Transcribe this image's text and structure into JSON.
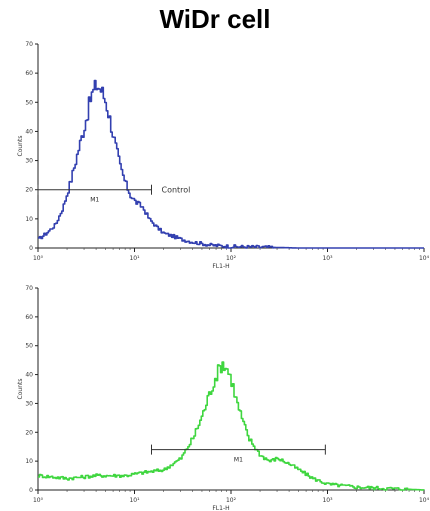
{
  "title": "WiDr cell",
  "chart_data": [
    {
      "type": "histogram",
      "color": "#3340b0",
      "xscale": "log",
      "xlim": [
        1,
        10000
      ],
      "ylim": [
        0,
        70
      ],
      "xlabel": "FL1-H",
      "ylabel": "Counts",
      "xticks": [
        1,
        10,
        100,
        1000,
        10000
      ],
      "xtick_labels": [
        "10⁰",
        "10¹",
        "10²",
        "10³",
        "10⁴"
      ],
      "yticks": [
        0,
        10,
        20,
        30,
        40,
        50,
        60,
        70
      ],
      "ytick_labels": [
        "0",
        "10",
        "20",
        "30",
        "40",
        "50",
        "60",
        "70"
      ],
      "gate": {
        "label": "M1",
        "x_start": 1,
        "x_end": 15,
        "y": 20
      },
      "annotation": "Control",
      "x": [
        1,
        1.2,
        1.5,
        1.8,
        2.2,
        2.6,
        3,
        3.5,
        4,
        4.5,
        5,
        5.5,
        6,
        7,
        8,
        9,
        10,
        12,
        14,
        17,
        20,
        25,
        30,
        40,
        60,
        100,
        200,
        500,
        1000,
        10000
      ],
      "values": [
        3,
        5,
        8,
        14,
        24,
        34,
        42,
        52,
        56,
        54,
        50,
        44,
        38,
        28,
        22,
        18,
        16,
        14,
        10,
        7,
        5,
        4,
        3,
        2,
        1,
        0.5,
        0.3,
        0,
        0,
        0
      ]
    },
    {
      "type": "histogram",
      "color": "#3fd63f",
      "xscale": "log",
      "xlim": [
        1,
        10000
      ],
      "ylim": [
        0,
        70
      ],
      "xlabel": "FL1-H",
      "ylabel": "Counts",
      "xticks": [
        1,
        10,
        100,
        1000,
        10000
      ],
      "xtick_labels": [
        "10⁰",
        "10¹",
        "10²",
        "10³",
        "10⁴"
      ],
      "yticks": [
        0,
        10,
        20,
        30,
        40,
        50,
        60,
        70
      ],
      "ytick_labels": [
        "0",
        "10",
        "20",
        "30",
        "40",
        "50",
        "60",
        "70"
      ],
      "gate": {
        "label": "M1",
        "x_start": 15,
        "x_end": 950,
        "y": 14
      },
      "x": [
        1,
        2,
        4,
        8,
        12,
        20,
        30,
        40,
        50,
        60,
        70,
        80,
        90,
        100,
        110,
        130,
        150,
        200,
        250,
        300,
        400,
        500,
        700,
        1000,
        2000,
        10000
      ],
      "values": [
        5,
        4,
        5,
        5,
        6,
        7,
        11,
        18,
        26,
        34,
        40,
        44,
        42,
        38,
        32,
        24,
        18,
        12,
        10,
        11,
        9,
        7,
        4,
        2,
        1,
        0
      ]
    }
  ]
}
